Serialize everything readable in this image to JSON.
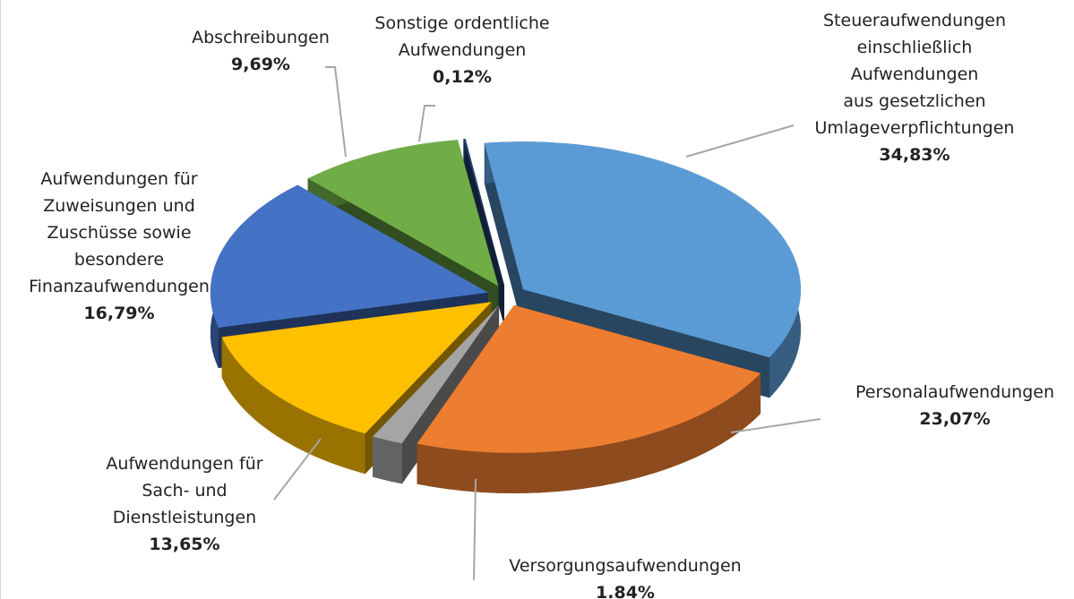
{
  "chart_data": {
    "type": "pie",
    "categories": [
      "Steueraufwendungen\neinschließlich Aufwendungen\naus gesetzlichen\nUmlageverpflichtungen",
      "Personalaufwendungen",
      "Versorgungsaufwendungen",
      "Aufwendungen für\nSach- und\nDienstleistungen",
      "Aufwendungen für\nZuweisungen und\nZuschüsse sowie\nbesondere\nFinanzaufwendungen",
      "Abschreibungen",
      "Sonstige ordentliche\nAufwendungen"
    ],
    "values": [
      34.83,
      23.07,
      1.84,
      13.65,
      16.79,
      9.69,
      0.12
    ],
    "value_labels": [
      "34,83%",
      "23,07%",
      "1.84%",
      "13,65%",
      "16,79%",
      "9,69%",
      "0,12%"
    ],
    "colors": [
      "#5b9bd5",
      "#ed7d31",
      "#a5a5a5",
      "#ffc000",
      "#4472c4",
      "#70ad47",
      "#264478"
    ]
  }
}
